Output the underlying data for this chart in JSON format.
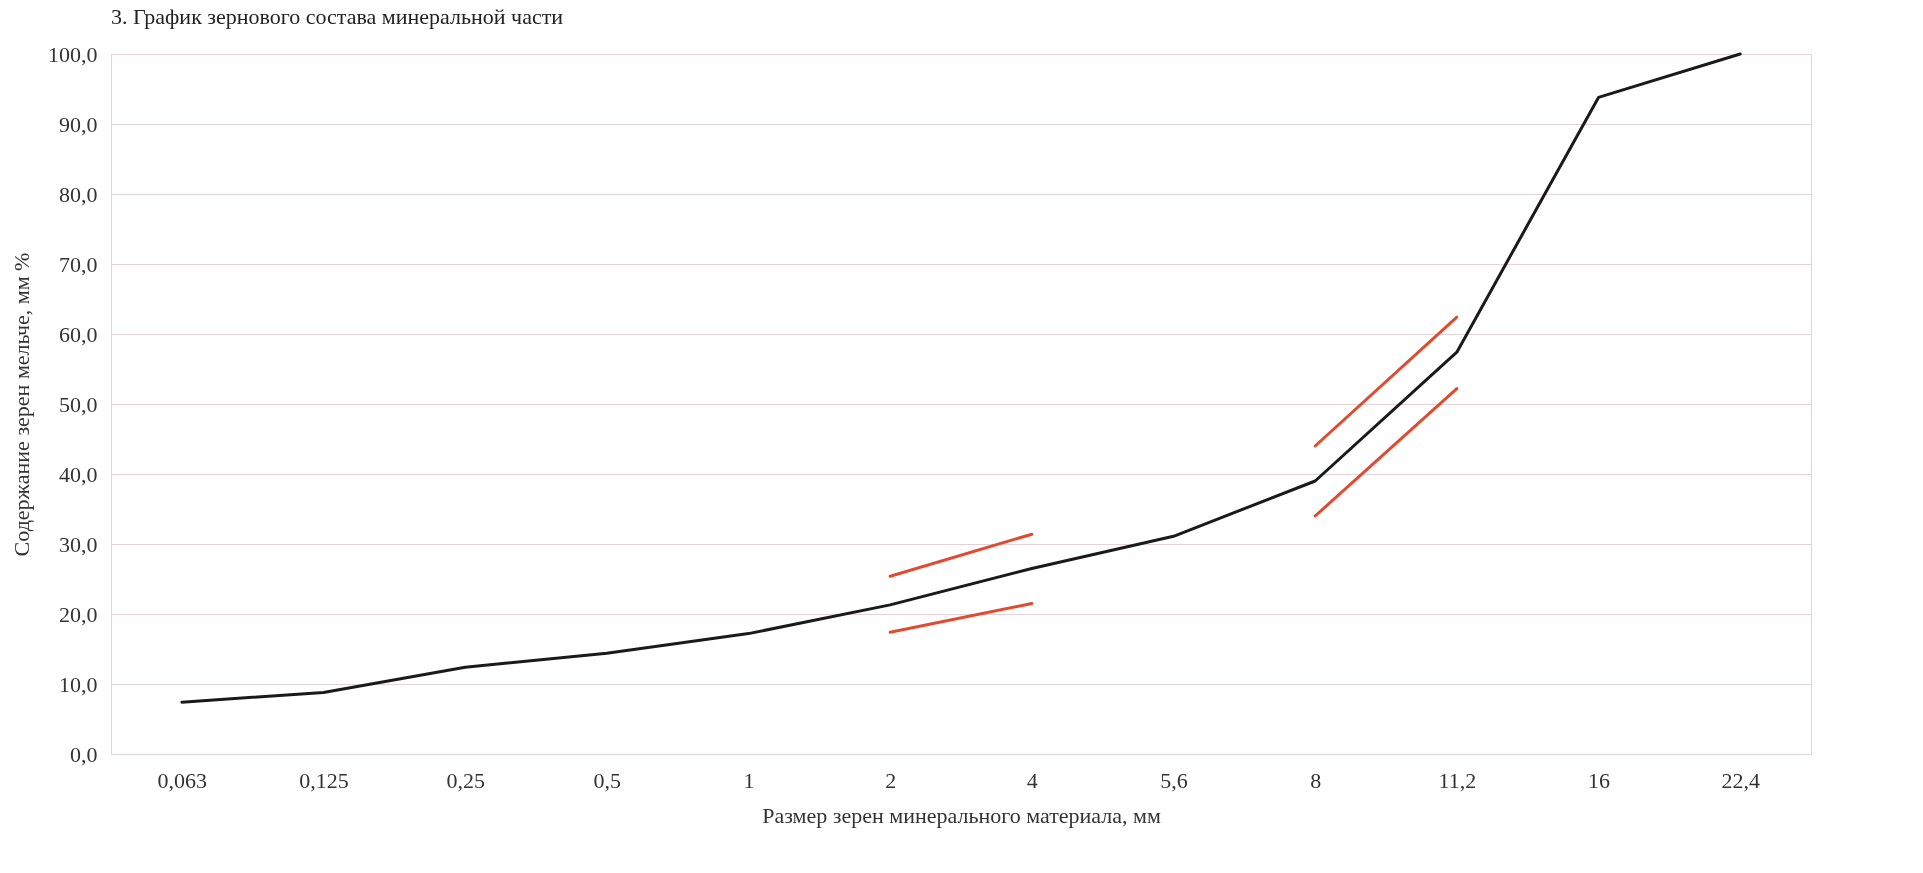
{
  "chart_data": {
    "type": "line",
    "title": "3. График зернового состава минеральной части",
    "xlabel": "Размер зерен минерального материала, мм",
    "ylabel": "Содержание зерен мельче, мм %",
    "categories": [
      "0,063",
      "0,125",
      "0,25",
      "0,5",
      "1",
      "2",
      "4",
      "5,6",
      "8",
      "11,2",
      "16",
      "22,4"
    ],
    "series": [
      {
        "color": "#1a1a1a",
        "values": [
          7.4,
          8.8,
          12.4,
          14.4,
          17.2,
          21.3,
          26.5,
          31.1,
          39.0,
          57.4,
          93.8,
          100.0
        ]
      },
      {
        "color": "#e04a2f",
        "values": [
          null,
          null,
          null,
          null,
          null,
          25.4,
          31.4,
          null,
          null,
          null,
          null,
          null
        ]
      },
      {
        "color": "#e04a2f",
        "values": [
          null,
          null,
          null,
          null,
          null,
          17.4,
          21.5,
          null,
          null,
          null,
          null,
          null
        ]
      },
      {
        "color": "#e04a2f",
        "values": [
          null,
          null,
          null,
          null,
          null,
          null,
          null,
          null,
          44.0,
          62.4,
          null,
          null
        ]
      },
      {
        "color": "#e04a2f",
        "values": [
          null,
          null,
          null,
          null,
          null,
          null,
          null,
          null,
          34.0,
          52.2,
          null,
          null
        ]
      }
    ],
    "ylim": [
      0,
      100
    ],
    "yticks": [
      {
        "value": 0,
        "label": "0,0"
      },
      {
        "value": 10,
        "label": "10,0"
      },
      {
        "value": 20,
        "label": "20,0"
      },
      {
        "value": 30,
        "label": "30,0"
      },
      {
        "value": 40,
        "label": "40,0"
      },
      {
        "value": 50,
        "label": "50,0"
      },
      {
        "value": 60,
        "label": "60,0"
      },
      {
        "value": 70,
        "label": "70,0"
      },
      {
        "value": 80,
        "label": "80,0"
      },
      {
        "value": 90,
        "label": "90,0"
      },
      {
        "value": 100,
        "label": "100,0"
      }
    ],
    "grid": "y",
    "legend": false
  }
}
